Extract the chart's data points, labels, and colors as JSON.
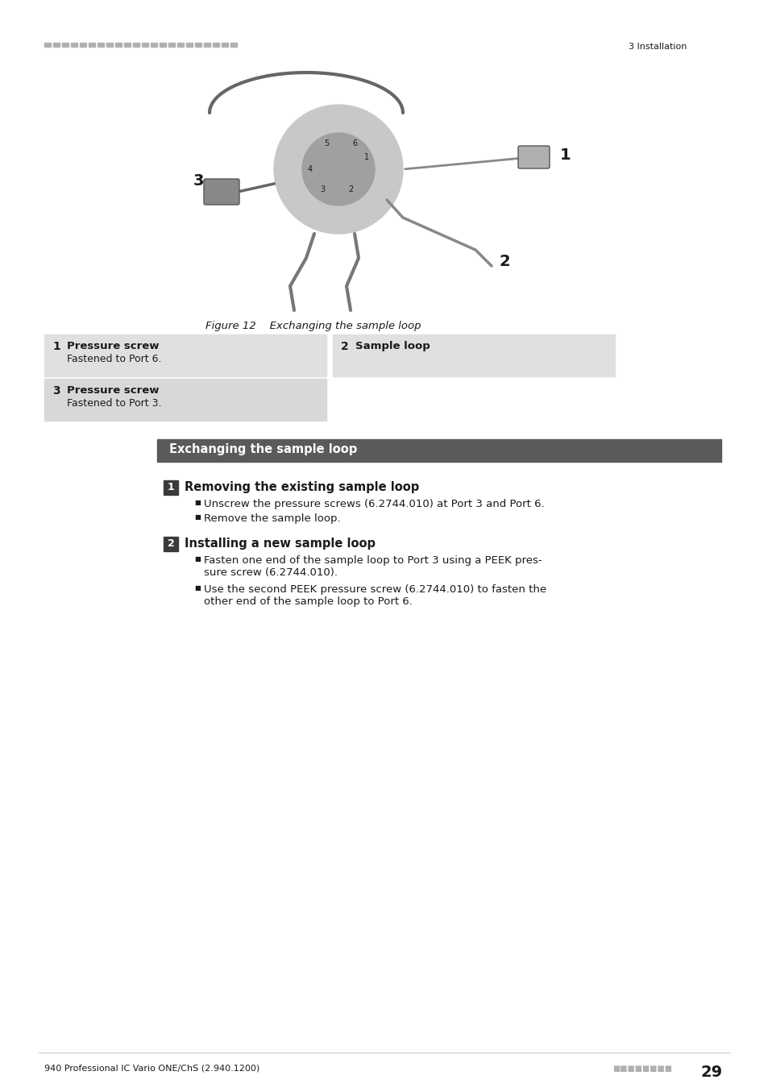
{
  "page_bg": "#ffffff",
  "header_line_color": "#b0b0b0",
  "header_left_text": "========================",
  "header_right_text": "3 Installation",
  "footer_left_text": "940 Professional IC Vario ONE/ChS (2.940.1200)",
  "footer_right_text": "29",
  "footer_dots": "■■■■■■■■",
  "figure_caption": "Figure 12    Exchanging the sample loop",
  "table_bg_light": "#e8e8e8",
  "table_bg_dark": "#d0d0d0",
  "table_items": [
    {
      "num": "1",
      "bold_text": "Pressure screw",
      "sub_text": "Fastened to Port 6.",
      "col": 0
    },
    {
      "num": "2",
      "bold_text": "Sample loop",
      "sub_text": "",
      "col": 1
    },
    {
      "num": "3",
      "bold_text": "Pressure screw",
      "sub_text": "Fastened to Port 3.",
      "col": 0
    }
  ],
  "section_header_bg": "#808080",
  "section_header_text": "Exchanging the sample loop",
  "section_header_color": "#ffffff",
  "step1_num": "1",
  "step1_title": "Removing the existing sample loop",
  "step1_bullets": [
    "Unscrew the pressure screws (6.2744.010) at Port 3 and Port 6.",
    "Remove the sample loop."
  ],
  "step2_num": "2",
  "step2_title": "Installing a new sample loop",
  "step2_bullets": [
    "Fasten one end of the sample loop to Port 3 using a PEEK pres-\nsure screw (6.2744.010).",
    "Use the second PEEK pressure screw (6.2744.010) to fasten the\nother end of the sample loop to Port 6."
  ],
  "accent_color": "#c8a000",
  "text_color": "#1a1a1a",
  "num_badge_bg": "#4a4a4a",
  "num_badge_fg": "#ffffff"
}
